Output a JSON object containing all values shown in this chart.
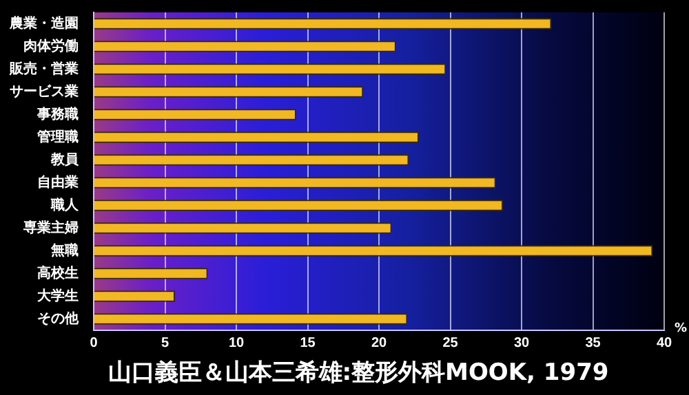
{
  "chart_data": {
    "type": "bar",
    "orientation": "horizontal",
    "categories": [
      "農業・造園",
      "肉体労働",
      "販売・営業",
      "サービス業",
      "事務職",
      "管理職",
      "教員",
      "自由業",
      "職人",
      "専業主婦",
      "無職",
      "高校生",
      "大学生",
      "その他"
    ],
    "values": [
      32.1,
      21.2,
      24.7,
      18.9,
      14.2,
      22.8,
      22.1,
      28.2,
      28.7,
      20.9,
      39.2,
      8.0,
      5.7,
      22.0
    ],
    "color": "#f2b822",
    "xlim": [
      0,
      40
    ],
    "xticks": [
      0,
      5,
      10,
      15,
      20,
      25,
      30,
      35,
      40
    ],
    "xlabel": "%",
    "grid": "x",
    "legend": false,
    "annotations": [
      "山口義臣＆山本三希雄:整形外科MOOK, 1979"
    ]
  }
}
